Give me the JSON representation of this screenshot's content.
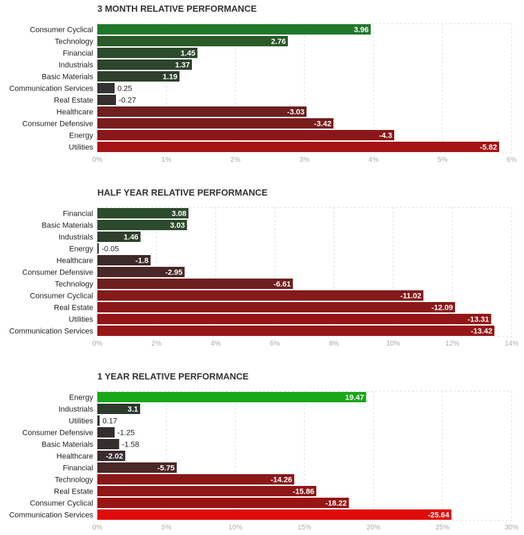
{
  "chart_data": [
    {
      "type": "bar",
      "orientation": "horizontal",
      "title": "3 MONTH RELATIVE PERFORMANCE",
      "categories": [
        "Consumer Cyclical",
        "Technology",
        "Financial",
        "Industrials",
        "Basic Materials",
        "Communication Services",
        "Real Estate",
        "Healthcare",
        "Consumer Defensive",
        "Energy",
        "Utilities"
      ],
      "values": [
        3.96,
        2.76,
        1.45,
        1.37,
        1.19,
        0.25,
        -0.27,
        -3.03,
        -3.42,
        -4.3,
        -5.82
      ],
      "value_labels": [
        "3.96",
        "2.76",
        "1.45",
        "1.37",
        "1.19",
        "0.25",
        "-0.27",
        "-3.03",
        "-3.42",
        "-4.3",
        "-5.82"
      ],
      "colors": [
        "#22772a",
        "#2a5a2a",
        "#2c4a2c",
        "#2d442d",
        "#2e3f2e",
        "#333333",
        "#35302f",
        "#6e1f1f",
        "#7a1c1c",
        "#8b1818",
        "#a51414"
      ],
      "xlim": [
        0,
        6
      ],
      "ticks": [
        "0%",
        "1%",
        "2%",
        "3%",
        "4%",
        "5%",
        "6%"
      ],
      "grid": true
    },
    {
      "type": "bar",
      "orientation": "horizontal",
      "title": "HALF YEAR RELATIVE PERFORMANCE",
      "categories": [
        "Financial",
        "Basic Materials",
        "Industrials",
        "Energy",
        "Healthcare",
        "Consumer Defensive",
        "Technology",
        "Consumer Cyclical",
        "Real Estate",
        "Utilities",
        "Communication Services"
      ],
      "values": [
        3.08,
        3.03,
        1.46,
        -0.05,
        -1.8,
        -2.95,
        -6.61,
        -11.02,
        -12.09,
        -13.31,
        -13.42
      ],
      "value_labels": [
        "3.08",
        "3.03",
        "1.46",
        "-0.05",
        "-1.8",
        "-2.95",
        "-6.61",
        "-11.02",
        "-12.09",
        "-13.31",
        "-13.42"
      ],
      "colors": [
        "#2c4a2c",
        "#2c4a2c",
        "#2e3f2e",
        "#333333",
        "#3d2a2a",
        "#4a2828",
        "#6e1f1f",
        "#851a1a",
        "#8b1818",
        "#941616",
        "#971616"
      ],
      "xlim": [
        0,
        14
      ],
      "ticks": [
        "0%",
        "2%",
        "4%",
        "6%",
        "8%",
        "10%",
        "12%",
        "14%"
      ],
      "grid": true
    },
    {
      "type": "bar",
      "orientation": "horizontal",
      "title": "1 YEAR RELATIVE PERFORMANCE",
      "categories": [
        "Energy",
        "Industrials",
        "Utilities",
        "Consumer Defensive",
        "Basic Materials",
        "Healthcare",
        "Financial",
        "Technology",
        "Real Estate",
        "Consumer Cyclical",
        "Communication Services"
      ],
      "values": [
        19.47,
        3.1,
        0.17,
        -1.25,
        -1.58,
        -2.02,
        -5.75,
        -14.26,
        -15.86,
        -18.22,
        -25.64
      ],
      "value_labels": [
        "19.47",
        "3.1",
        "0.17",
        "-1.25",
        "-1.58",
        "-2.02",
        "-5.75",
        "-14.26",
        "-15.86",
        "-18.22",
        "-25.64"
      ],
      "colors": [
        "#17a717",
        "#2d3a2d",
        "#333333",
        "#352e2e",
        "#362d2d",
        "#382c2c",
        "#4a2828",
        "#8b1818",
        "#901717",
        "#981515",
        "#e00c0c"
      ],
      "xlim": [
        0,
        30
      ],
      "ticks": [
        "0%",
        "5%",
        "10%",
        "15%",
        "20%",
        "25%",
        "30%"
      ],
      "grid": true
    }
  ]
}
